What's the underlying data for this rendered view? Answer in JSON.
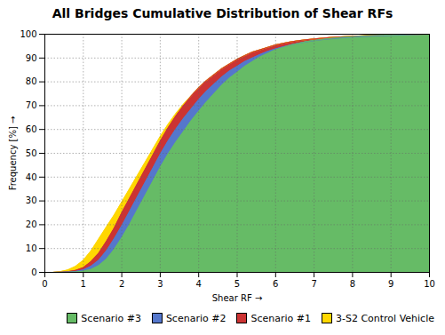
{
  "chart_data": {
    "type": "area",
    "title": "All Bridges Cumulative Distribution of Shear RFs",
    "xlabel": "Shear RF",
    "ylabel": "Frequency [%]",
    "xlim": [
      0,
      10
    ],
    "ylim": [
      0,
      100
    ],
    "xticks": [
      0,
      1,
      2,
      3,
      4,
      5,
      6,
      7,
      8,
      9,
      10
    ],
    "yticks": [
      0,
      10,
      20,
      30,
      40,
      50,
      60,
      70,
      80,
      90,
      100
    ],
    "grid": true,
    "legend": "lower right",
    "x": [
      0.0,
      0.2,
      0.4,
      0.6,
      0.8,
      1.0,
      1.2,
      1.4,
      1.6,
      1.8,
      2.0,
      2.2,
      2.4,
      2.6,
      2.8,
      3.0,
      3.2,
      3.4,
      3.6,
      3.8,
      4.0,
      4.2,
      4.4,
      4.6,
      4.8,
      5.0,
      5.2,
      5.4,
      5.6,
      5.8,
      6.0,
      6.2,
      6.4,
      6.6,
      6.8,
      7.0,
      7.2,
      7.4,
      7.6,
      7.8,
      8.0,
      8.2,
      8.4,
      8.6,
      8.8,
      9.0,
      9.2,
      9.4,
      9.6,
      9.8,
      10.0
    ],
    "series": [
      {
        "name": "Scenario #3",
        "color": "#66BB66",
        "values": [
          0.0,
          0.0,
          0.02,
          0.08,
          0.2,
          0.5,
          1.2,
          2.8,
          5.5,
          9.5,
          14.5,
          20.0,
          26.0,
          32.0,
          38.0,
          44.0,
          49.5,
          54.5,
          59.0,
          63.5,
          67.5,
          71.5,
          75.0,
          78.5,
          81.5,
          84.0,
          86.5,
          88.5,
          90.5,
          92.0,
          93.5,
          94.5,
          95.5,
          96.2,
          96.9,
          97.4,
          97.8,
          98.2,
          98.5,
          98.8,
          99.0,
          99.2,
          99.4,
          99.5,
          99.6,
          99.7,
          99.8,
          99.85,
          99.9,
          99.95,
          100.0
        ]
      },
      {
        "name": "Scenario #2",
        "color": "#5577CC",
        "values": [
          0.0,
          0.0,
          0.05,
          0.15,
          0.4,
          1.0,
          2.5,
          5.0,
          9.0,
          14.0,
          19.5,
          25.5,
          31.5,
          37.5,
          43.5,
          49.5,
          55.0,
          60.0,
          64.5,
          68.5,
          72.5,
          76.0,
          79.0,
          82.0,
          84.5,
          86.5,
          88.5,
          90.0,
          91.5,
          92.8,
          93.8,
          94.7,
          95.5,
          96.2,
          96.8,
          97.3,
          97.7,
          98.0,
          98.3,
          98.6,
          98.8,
          99.0,
          99.1,
          99.3,
          99.4,
          99.5,
          99.6,
          99.7,
          99.8,
          99.9,
          100.0
        ]
      },
      {
        "name": "Scenario #1",
        "color": "#CC3333",
        "values": [
          0.0,
          0.0,
          0.1,
          0.3,
          0.8,
          2.0,
          4.5,
          8.0,
          13.0,
          18.5,
          25.0,
          31.0,
          37.0,
          43.0,
          49.0,
          55.0,
          60.5,
          65.5,
          70.0,
          74.0,
          77.5,
          80.5,
          83.0,
          85.5,
          87.5,
          89.5,
          91.0,
          92.5,
          93.5,
          94.5,
          95.5,
          96.2,
          96.8,
          97.3,
          97.7,
          98.0,
          98.3,
          98.6,
          98.8,
          99.0,
          99.1,
          99.3,
          99.4,
          99.5,
          99.6,
          99.7,
          99.8,
          99.85,
          99.9,
          99.95,
          100.0
        ]
      },
      {
        "name": "3-S2 Control Vehicle",
        "color": "#FFD700",
        "values": [
          0.0,
          0.0,
          0.3,
          1.0,
          2.5,
          5.0,
          9.0,
          14.0,
          19.0,
          24.0,
          29.5,
          35.0,
          40.5,
          46.0,
          51.5,
          57.0,
          62.0,
          66.5,
          70.5,
          74.0,
          77.5,
          80.5,
          83.0,
          85.5,
          87.5,
          89.5,
          91.0,
          92.5,
          93.5,
          94.5,
          95.5,
          96.2,
          96.8,
          97.3,
          97.7,
          98.0,
          98.3,
          98.6,
          98.8,
          99.0,
          99.1,
          99.3,
          99.4,
          99.5,
          99.6,
          99.7,
          99.8,
          99.85,
          99.9,
          99.95,
          100.0
        ]
      }
    ]
  }
}
